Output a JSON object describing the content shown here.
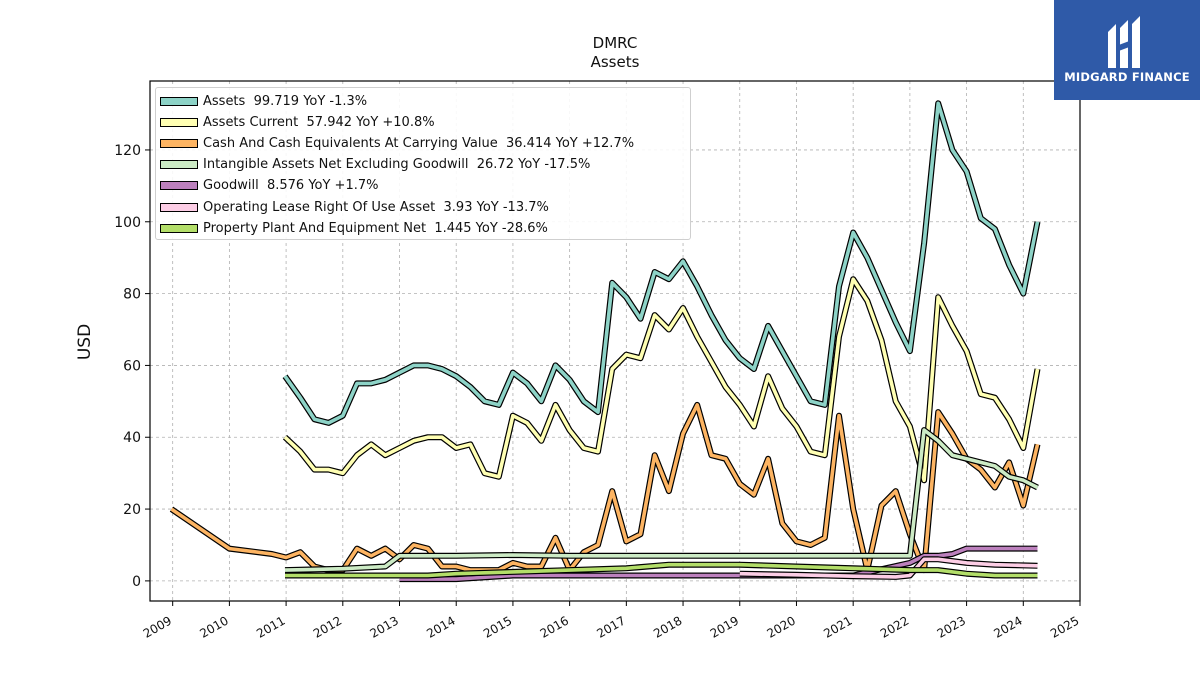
{
  "chart_data": {
    "type": "line",
    "title": "DMRC",
    "subtitle": "Assets",
    "ylabel": "USD",
    "xlabel": "",
    "xlim": [
      2008.6,
      2025.0
    ],
    "ylim": [
      -5.6,
      139.2
    ],
    "yticks": [
      0,
      20,
      40,
      60,
      80,
      100,
      120
    ],
    "xticks": [
      "2009",
      "2010",
      "2011",
      "2012",
      "2013",
      "2014",
      "2015",
      "2016",
      "2017",
      "2018",
      "2019",
      "2020",
      "2021",
      "2022",
      "2023",
      "2024",
      "2025"
    ],
    "grid": true,
    "legend_position": "top-left",
    "series": [
      {
        "name": "Assets",
        "legend_label": "Assets  99.719 YoY -1.3%",
        "color": "#8dd3c7",
        "x": [
          2010.98,
          2011.25,
          2011.5,
          2011.75,
          2012.0,
          2012.25,
          2012.5,
          2012.75,
          2013.0,
          2013.25,
          2013.5,
          2013.75,
          2014.0,
          2014.25,
          2014.5,
          2014.75,
          2015.0,
          2015.25,
          2015.5,
          2015.75,
          2016.0,
          2016.25,
          2016.5,
          2016.75,
          2017.0,
          2017.25,
          2017.5,
          2017.75,
          2018.0,
          2018.25,
          2018.5,
          2018.75,
          2019.0,
          2019.25,
          2019.5,
          2019.75,
          2020.0,
          2020.25,
          2020.5,
          2020.75,
          2021.0,
          2021.25,
          2021.5,
          2021.75,
          2022.0,
          2022.25,
          2022.5,
          2022.75,
          2023.0,
          2023.25,
          2023.5,
          2023.75,
          2024.0,
          2024.25
        ],
        "values": [
          57,
          51,
          45,
          44,
          46,
          55,
          55,
          56,
          58,
          60,
          60,
          59,
          57,
          54,
          50,
          49,
          58,
          55,
          50,
          60,
          56,
          50,
          47,
          83,
          79,
          73,
          86,
          84,
          89,
          82,
          74,
          67,
          62,
          59,
          71,
          64,
          57,
          50,
          49,
          82,
          97,
          90,
          81,
          72,
          64,
          94,
          133,
          120,
          114,
          101,
          98,
          88,
          80,
          100
        ]
      },
      {
        "name": "Assets Current",
        "legend_label": "Assets Current  57.942 YoY +10.8%",
        "color": "#ffffb3",
        "x": [
          2010.98,
          2011.25,
          2011.5,
          2011.75,
          2012.0,
          2012.25,
          2012.5,
          2012.75,
          2013.0,
          2013.25,
          2013.5,
          2013.75,
          2014.0,
          2014.25,
          2014.5,
          2014.75,
          2015.0,
          2015.25,
          2015.5,
          2015.75,
          2016.0,
          2016.25,
          2016.5,
          2016.75,
          2017.0,
          2017.25,
          2017.5,
          2017.75,
          2018.0,
          2018.25,
          2018.5,
          2018.75,
          2019.0,
          2019.25,
          2019.5,
          2019.75,
          2020.0,
          2020.25,
          2020.5,
          2020.75,
          2021.0,
          2021.25,
          2021.5,
          2021.75,
          2022.0,
          2022.25,
          2022.5,
          2022.75,
          2023.0,
          2023.25,
          2023.5,
          2023.75,
          2024.0,
          2024.25
        ],
        "values": [
          40,
          36,
          31,
          31,
          30,
          35,
          38,
          35,
          37,
          39,
          40,
          40,
          37,
          38,
          30,
          29,
          46,
          44,
          39,
          49,
          42,
          37,
          36,
          59,
          63,
          62,
          74,
          70,
          76,
          68,
          61,
          54,
          49,
          43,
          57,
          48,
          43,
          36,
          35,
          68,
          84,
          78,
          67,
          50,
          43,
          28,
          79,
          71,
          64,
          52,
          51,
          45,
          37,
          59
        ]
      },
      {
        "name": "Cash And Cash Equivalents At Carrying Value",
        "legend_label": "Cash And Cash Equivalents At Carrying Value  36.414 YoY +12.7%",
        "color": "#fdb462",
        "x": [
          2008.98,
          2010.0,
          2010.75,
          2011.0,
          2011.25,
          2011.5,
          2011.75,
          2012.0,
          2012.25,
          2012.5,
          2012.75,
          2013.0,
          2013.25,
          2013.5,
          2013.75,
          2014.0,
          2014.25,
          2014.5,
          2014.75,
          2015.0,
          2015.25,
          2015.5,
          2015.75,
          2016.0,
          2016.25,
          2016.5,
          2016.75,
          2017.0,
          2017.25,
          2017.5,
          2017.75,
          2018.0,
          2018.25,
          2018.5,
          2018.75,
          2019.0,
          2019.25,
          2019.5,
          2019.75,
          2020.0,
          2020.25,
          2020.5,
          2020.75,
          2021.0,
          2021.25,
          2021.5,
          2021.75,
          2022.0,
          2022.25,
          2022.5,
          2022.75,
          2023.0,
          2023.25,
          2023.5,
          2023.75,
          2024.0,
          2024.25
        ],
        "values": [
          20,
          9,
          7.5,
          6.5,
          8,
          4,
          3,
          3,
          9,
          7,
          9,
          6,
          10,
          9,
          4,
          4,
          3,
          3,
          3,
          5,
          4,
          4,
          12,
          3,
          8,
          10,
          25,
          11,
          13,
          35,
          25,
          41,
          49,
          35,
          34,
          27,
          24,
          34,
          16,
          11,
          10,
          12,
          46,
          20,
          3,
          21,
          25,
          13,
          3,
          47,
          41,
          34,
          31,
          26,
          33,
          21,
          38
        ]
      },
      {
        "name": "Intangible Assets Net Excluding Goodwill",
        "legend_label": "Intangible Assets Net Excluding Goodwill  26.72 YoY -17.5%",
        "color": "#ccebc5",
        "x": [
          2010.98,
          2011.5,
          2012.0,
          2012.75,
          2013.0,
          2014.0,
          2015.0,
          2016.0,
          2017.0,
          2018.0,
          2019.0,
          2020.0,
          2021.0,
          2022.0,
          2022.25,
          2022.5,
          2022.75,
          2023.0,
          2023.5,
          2023.75,
          2024.0,
          2024.25
        ],
        "values": [
          3,
          3.2,
          3.4,
          4,
          7,
          7,
          7.2,
          7,
          7,
          7,
          7,
          7,
          7,
          7,
          42,
          39,
          35,
          34,
          32,
          29,
          28,
          26
        ]
      },
      {
        "name": "Goodwill",
        "legend_label": "Goodwill  8.576 YoY +1.7%",
        "color": "#bc80bd",
        "x": [
          2013.0,
          2014.0,
          2015.0,
          2016.0,
          2017.0,
          2018.0,
          2019.0,
          2020.0,
          2021.0,
          2022.0,
          2022.25,
          2022.5,
          2022.75,
          2023.0,
          2023.5,
          2024.0,
          2024.25
        ],
        "values": [
          0.5,
          0.5,
          1.5,
          1.5,
          1.5,
          1.5,
          1.5,
          1.5,
          1.5,
          5,
          7,
          7,
          7.5,
          9,
          9,
          9,
          9
        ]
      },
      {
        "name": "Operating Lease Right Of Use Asset",
        "legend_label": "Operating Lease Right Of Use Asset  3.93 YoY -13.7%",
        "color": "#fccde5",
        "x": [
          2019.0,
          2020.0,
          2021.0,
          2021.75,
          2022.0,
          2022.25,
          2022.5,
          2023.0,
          2023.5,
          2024.0,
          2024.25
        ],
        "values": [
          2,
          1.7,
          1.3,
          1.1,
          1.5,
          6,
          6,
          5,
          4.5,
          4.3,
          4.2
        ]
      },
      {
        "name": "Property Plant And Equipment Net",
        "legend_label": "Property Plant And Equipment Net  1.445 YoY -28.6%",
        "color": "#b3de69",
        "x": [
          2010.98,
          2012.0,
          2013.0,
          2013.5,
          2014.0,
          2015.0,
          2016.0,
          2017.0,
          2017.75,
          2018.5,
          2019.0,
          2020.0,
          2021.0,
          2022.0,
          2022.5,
          2023.0,
          2023.5,
          2024.0,
          2024.25
        ],
        "values": [
          1.5,
          1.5,
          1.5,
          1.5,
          2,
          2.5,
          3,
          3.5,
          4.5,
          4.5,
          4.5,
          4,
          3.5,
          3,
          3,
          2,
          1.5,
          1.5,
          1.5
        ]
      }
    ]
  },
  "logo": {
    "text": "MIDGARD FINANCE"
  }
}
